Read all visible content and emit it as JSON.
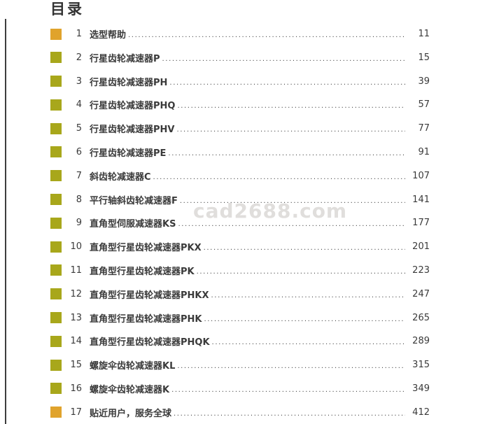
{
  "page": {
    "title": "目录"
  },
  "watermark": "cad2688.com",
  "colors": {
    "orange": "#E0A32C",
    "olive": "#A8A71B",
    "text": "#3A3A3A",
    "rule": "#3D3D3D"
  },
  "toc": {
    "entries": [
      {
        "num": "1",
        "title": "选型帮助",
        "page": "11",
        "marker": "orange"
      },
      {
        "num": "2",
        "title": "行星齿轮减速器P",
        "page": "15",
        "marker": "olive"
      },
      {
        "num": "3",
        "title": "行星齿轮减速器PH",
        "page": "39",
        "marker": "olive"
      },
      {
        "num": "4",
        "title": "行星齿轮减速器PHQ",
        "page": "57",
        "marker": "olive"
      },
      {
        "num": "5",
        "title": "行星齿轮减速器PHV",
        "page": "77",
        "marker": "olive"
      },
      {
        "num": "6",
        "title": "行星齿轮减速器PE",
        "page": "91",
        "marker": "olive"
      },
      {
        "num": "7",
        "title": "斜齿轮减速器C",
        "page": "107",
        "marker": "olive"
      },
      {
        "num": "8",
        "title": "平行轴斜齿轮减速器F",
        "page": "141",
        "marker": "olive"
      },
      {
        "num": "9",
        "title": "直角型伺服减速器KS",
        "page": "177",
        "marker": "olive"
      },
      {
        "num": "10",
        "title": "直角型行星齿轮减速器PKX",
        "page": "201",
        "marker": "olive"
      },
      {
        "num": "11",
        "title": "直角型行星齿轮减速器PK",
        "page": "223",
        "marker": "olive"
      },
      {
        "num": "12",
        "title": "直角型行星齿轮减速器PHKX",
        "page": "247",
        "marker": "olive"
      },
      {
        "num": "13",
        "title": "直角型行星齿轮减速器PHK",
        "page": "265",
        "marker": "olive"
      },
      {
        "num": "14",
        "title": "直角型行星齿轮减速器PHQK",
        "page": "289",
        "marker": "olive"
      },
      {
        "num": "15",
        "title": "螺旋伞齿轮减速器KL",
        "page": "315",
        "marker": "olive"
      },
      {
        "num": "16",
        "title": "螺旋伞齿轮减速器K",
        "page": "349",
        "marker": "olive"
      },
      {
        "num": "17",
        "title": "贴近用户，服务全球",
        "page": "412",
        "marker": "orange"
      }
    ]
  }
}
